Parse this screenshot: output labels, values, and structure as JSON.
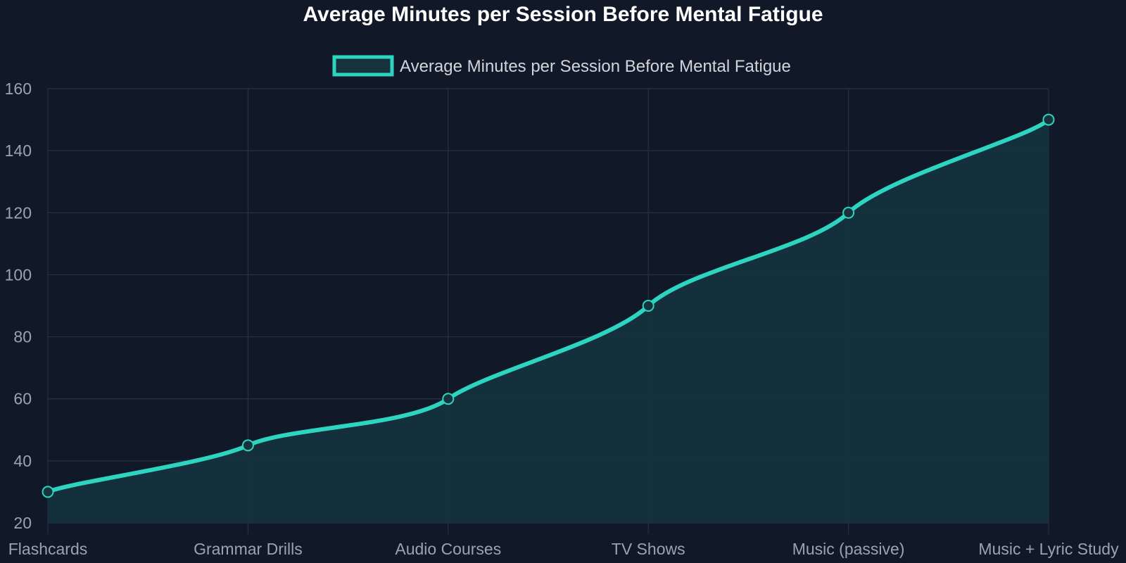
{
  "chart_data": {
    "type": "area",
    "title": "Average Minutes per Session Before Mental Fatigue",
    "categories": [
      "Flashcards",
      "Grammar Drills",
      "Audio Courses",
      "TV Shows",
      "Music (passive)",
      "Music + Lyric Study"
    ],
    "series": [
      {
        "name": "Average Minutes per Session Before Mental Fatigue",
        "values": [
          30,
          45,
          60,
          90,
          120,
          150
        ],
        "color": "#2dd4bf"
      }
    ],
    "ylim": [
      20,
      160
    ],
    "yticks": [
      20,
      40,
      60,
      80,
      100,
      120,
      140,
      160
    ],
    "grid": true,
    "legend": "top-center"
  },
  "colors": {
    "background": "#111827",
    "line": "#2dd4bf",
    "fill": "#15323d",
    "grid": "#263142"
  }
}
